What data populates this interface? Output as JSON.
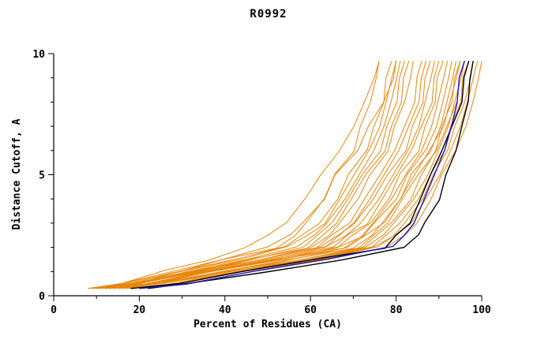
{
  "title": "R0992",
  "chart_data": {
    "type": "line",
    "title": "R0992",
    "xlabel": "Percent of Residues (CA)",
    "ylabel": "Distance Cutoff, A",
    "xlim": [
      0,
      100
    ],
    "ylim": [
      0,
      10
    ],
    "grid": false,
    "legend": "none",
    "x_major_ticks": [
      0,
      20,
      40,
      60,
      80,
      100
    ],
    "x_minor_ticks": [
      10,
      30,
      50,
      70,
      90
    ],
    "y_major_ticks": [
      0,
      5,
      10
    ],
    "y_minor_ticks": [
      1,
      2,
      3,
      4,
      6,
      7,
      8,
      9
    ],
    "colors": {
      "orange": "#E8860B",
      "black": "#000000",
      "blue": "#1414CC"
    },
    "y_grid": [
      0.3,
      0.5,
      1,
      1.5,
      2,
      2.5,
      3,
      4,
      5,
      6,
      7,
      8,
      9,
      9.7
    ],
    "series": [
      {
        "color": "orange",
        "x": [
          10,
          19,
          33,
          49,
          62,
          67,
          70,
          75,
          78,
          82,
          84,
          86,
          87,
          88
        ]
      },
      {
        "color": "orange",
        "x": [
          12,
          22,
          37,
          54,
          68,
          72,
          75,
          79,
          82,
          86,
          88,
          90,
          91,
          92
        ]
      },
      {
        "color": "orange",
        "x": [
          14,
          24,
          40,
          58,
          72,
          76,
          79,
          83,
          86,
          89,
          91,
          93,
          94,
          95
        ]
      },
      {
        "color": "orange",
        "x": [
          9,
          17,
          30,
          44,
          55,
          59,
          63,
          67,
          70,
          74,
          76,
          78,
          79,
          80
        ]
      },
      {
        "color": "orange",
        "x": [
          11,
          20,
          33,
          48,
          60,
          64,
          67,
          71,
          74,
          78,
          80,
          82,
          83,
          84
        ]
      },
      {
        "color": "orange",
        "x": [
          13,
          22,
          36,
          52,
          65,
          69,
          73,
          77,
          80,
          84,
          86,
          88,
          89,
          90
        ]
      },
      {
        "color": "orange",
        "x": [
          15,
          25,
          40,
          56,
          70,
          74,
          77,
          81,
          84,
          88,
          90,
          92,
          93,
          94
        ]
      },
      {
        "color": "orange",
        "x": [
          10,
          19,
          32,
          46,
          58,
          62,
          65,
          69,
          72,
          76,
          78,
          80,
          81,
          82
        ]
      },
      {
        "color": "orange",
        "x": [
          12,
          21,
          35,
          51,
          64,
          68,
          72,
          76,
          79,
          83,
          85,
          87,
          88,
          89
        ]
      },
      {
        "color": "orange",
        "x": [
          16,
          26,
          42,
          60,
          74,
          78,
          81,
          85,
          88,
          91,
          93,
          95,
          96,
          97
        ]
      },
      {
        "color": "orange",
        "x": [
          18,
          28,
          44,
          62,
          76,
          80,
          83,
          87,
          90,
          93,
          95,
          97,
          98,
          99
        ]
      },
      {
        "color": "orange",
        "x": [
          8,
          16,
          28,
          41,
          52,
          56,
          59,
          63,
          66,
          70,
          72,
          74,
          75,
          76
        ]
      },
      {
        "color": "orange",
        "x": [
          11,
          20,
          34,
          50,
          63,
          67,
          70,
          74,
          77,
          81,
          83,
          85,
          86,
          87
        ]
      },
      {
        "color": "orange",
        "x": [
          13,
          23,
          37,
          54,
          67,
          72,
          75,
          80,
          83,
          87,
          89,
          91,
          92,
          93
        ]
      },
      {
        "color": "orange",
        "x": [
          15,
          25,
          40,
          57,
          71,
          75,
          78,
          82,
          85,
          89,
          92,
          94,
          95,
          96
        ]
      },
      {
        "color": "orange",
        "x": [
          9,
          18,
          31,
          45,
          57,
          61,
          64,
          68,
          71,
          75,
          77,
          79,
          80,
          81
        ]
      },
      {
        "color": "orange",
        "x": [
          12,
          22,
          36,
          53,
          66,
          70,
          74,
          78,
          81,
          85,
          87,
          89,
          90,
          91
        ]
      },
      {
        "color": "orange",
        "x": [
          14,
          24,
          39,
          55,
          69,
          73,
          77,
          81,
          84,
          88,
          91,
          93,
          94,
          95
        ]
      },
      {
        "color": "orange",
        "x": [
          17,
          27,
          43,
          61,
          75,
          79,
          82,
          86,
          89,
          92,
          94,
          96,
          97,
          98
        ]
      },
      {
        "color": "orange",
        "x": [
          10,
          19,
          33,
          48,
          61,
          65,
          69,
          73,
          76,
          80,
          82,
          84,
          85,
          86
        ]
      },
      {
        "color": "orange",
        "x": [
          20,
          30,
          46,
          64,
          78,
          82,
          85,
          88,
          91,
          94,
          96,
          98,
          99,
          100
        ]
      },
      {
        "color": "orange",
        "x": [
          12,
          20,
          33,
          47,
          59,
          63,
          66,
          70,
          73,
          77,
          79,
          81,
          82,
          83
        ]
      },
      {
        "color": "orange",
        "x": [
          16,
          26,
          42,
          59,
          73,
          77,
          80,
          84,
          87,
          90,
          92,
          94,
          95,
          96
        ]
      },
      {
        "color": "orange",
        "x": [
          8,
          16,
          29,
          43,
          54,
          58,
          62,
          66,
          69,
          73,
          75,
          77,
          78,
          79
        ]
      },
      {
        "color": "orange",
        "x": [
          10,
          16,
          26,
          36,
          45,
          50,
          54,
          59,
          62,
          67,
          70,
          73,
          75,
          76
        ]
      },
      {
        "color": "orange",
        "x": [
          12,
          19,
          29,
          40,
          50,
          55,
          58,
          63,
          66,
          71,
          74,
          77,
          79,
          80
        ]
      },
      {
        "color": "black",
        "x": [
          18,
          29,
          45,
          62,
          77,
          80,
          83,
          86,
          88,
          91,
          93,
          95,
          96,
          97
        ]
      },
      {
        "color": "black",
        "x": [
          22,
          33,
          49,
          67,
          82,
          85,
          87,
          90,
          92,
          94,
          95,
          97,
          97,
          98
        ]
      },
      {
        "color": "blue",
        "x": [
          20,
          31,
          46,
          64,
          79,
          82,
          84,
          87,
          89,
          91,
          93,
          94,
          95,
          96
        ]
      }
    ]
  }
}
